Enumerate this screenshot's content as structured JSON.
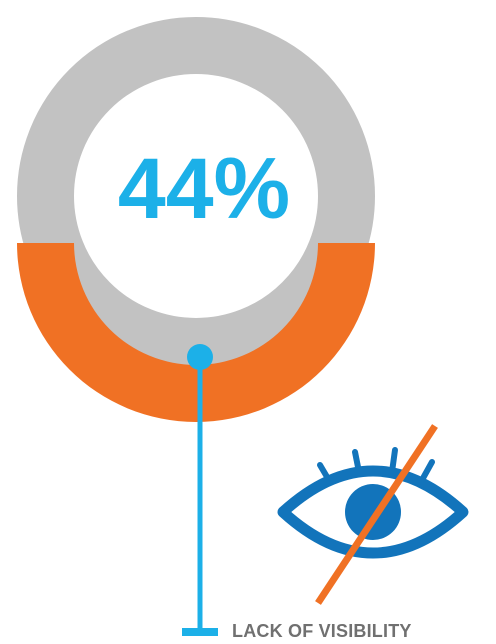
{
  "stat": {
    "percent_value": 44,
    "percent_label": "44%",
    "caption": "LACK OF VISIBILITY"
  },
  "colors": {
    "ring_track": "#c2c2c2",
    "ring_fill": "#f07124",
    "percent_text": "#1cb0e8",
    "connector": "#1cb0e8",
    "eye_icon": "#1274bb",
    "slash": "#f07124",
    "caption_text": "#707070"
  },
  "icons": {
    "eye": "eye-crossed-out-icon"
  }
}
